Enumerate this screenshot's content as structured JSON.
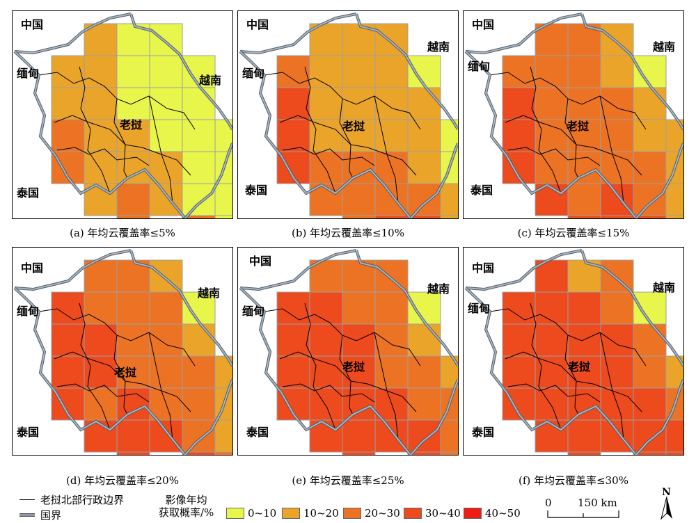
{
  "panels": [
    {
      "caption": "(a) 年均云覆盖率≤5%",
      "grid": [
        [
          0,
          2,
          1,
          1,
          0,
          0
        ],
        [
          2,
          2,
          1,
          1,
          1,
          0
        ],
        [
          2,
          2,
          1,
          1,
          1,
          0
        ],
        [
          3,
          2,
          2,
          1,
          1,
          1
        ],
        [
          3,
          2,
          2,
          2,
          1,
          1
        ],
        [
          0,
          2,
          3,
          2,
          1,
          1
        ],
        [
          0,
          0,
          3,
          0,
          3,
          1
        ]
      ]
    },
    {
      "caption": "(b) 年均云覆盖率≤10%",
      "grid": [
        [
          0,
          2,
          2,
          2,
          0,
          0
        ],
        [
          3,
          2,
          2,
          2,
          1,
          0
        ],
        [
          4,
          2,
          2,
          2,
          2,
          0
        ],
        [
          4,
          2,
          2,
          2,
          2,
          1
        ],
        [
          4,
          3,
          3,
          3,
          2,
          1
        ],
        [
          0,
          3,
          3,
          3,
          3,
          2
        ],
        [
          0,
          0,
          3,
          4,
          4,
          2
        ]
      ]
    },
    {
      "caption": "(c) 年均云覆盖率≤15%",
      "grid": [
        [
          0,
          3,
          3,
          2,
          0,
          0
        ],
        [
          3,
          3,
          3,
          2,
          1,
          0
        ],
        [
          4,
          3,
          3,
          3,
          2,
          0
        ],
        [
          4,
          3,
          3,
          3,
          2,
          2
        ],
        [
          4,
          3,
          3,
          3,
          3,
          2
        ],
        [
          0,
          4,
          3,
          4,
          3,
          2
        ],
        [
          0,
          0,
          4,
          4,
          4,
          2
        ]
      ]
    },
    {
      "caption": "(d) 年均云覆盖率≤20%",
      "grid": [
        [
          0,
          3,
          3,
          2,
          0,
          0
        ],
        [
          4,
          3,
          3,
          3,
          1,
          0
        ],
        [
          4,
          4,
          3,
          3,
          2,
          0
        ],
        [
          4,
          4,
          3,
          3,
          3,
          2
        ],
        [
          4,
          3,
          4,
          3,
          3,
          2
        ],
        [
          0,
          4,
          4,
          4,
          3,
          2
        ],
        [
          0,
          0,
          4,
          0,
          4,
          3
        ]
      ]
    },
    {
      "caption": "(e) 年均云覆盖率≤25%",
      "grid": [
        [
          0,
          3,
          3,
          3,
          0,
          0
        ],
        [
          4,
          4,
          3,
          3,
          1,
          0
        ],
        [
          4,
          4,
          4,
          3,
          2,
          0
        ],
        [
          4,
          4,
          4,
          3,
          3,
          2
        ],
        [
          4,
          4,
          4,
          4,
          3,
          3
        ],
        [
          0,
          4,
          4,
          4,
          4,
          3
        ],
        [
          0,
          0,
          4,
          0,
          4,
          3
        ]
      ]
    },
    {
      "caption": "(f) 年均云覆盖率≤30%",
      "grid": [
        [
          0,
          4,
          2,
          3,
          0,
          0
        ],
        [
          4,
          4,
          4,
          3,
          1,
          0
        ],
        [
          4,
          4,
          4,
          4,
          3,
          0
        ],
        [
          4,
          4,
          4,
          4,
          3,
          2
        ],
        [
          4,
          4,
          4,
          4,
          4,
          3
        ],
        [
          0,
          4,
          4,
          4,
          4,
          4
        ],
        [
          0,
          0,
          4,
          0,
          4,
          4
        ]
      ]
    }
  ],
  "place_labels": {
    "china": "中国",
    "myanmar": "缅甸",
    "vietnam": "越南",
    "laos_city": "老挝",
    "thailand": "泰国"
  },
  "legend": {
    "admin_boundary": "老挝北部行政边界",
    "national_border": "国界",
    "class_title_line1": "影像年均",
    "class_title_line2": "获取概率/%",
    "classes": [
      {
        "label": "0~10",
        "color": "#e8f54b"
      },
      {
        "label": "10~20",
        "color": "#eba42a"
      },
      {
        "label": "20~30",
        "color": "#ec7324"
      },
      {
        "label": "30~40",
        "color": "#ed4a1e"
      },
      {
        "label": "40~50",
        "color": "#ef1d14"
      }
    ]
  },
  "scale_bar": {
    "zero": "0",
    "length_label": "150 km"
  },
  "north_arrow": {
    "label": "N"
  }
}
